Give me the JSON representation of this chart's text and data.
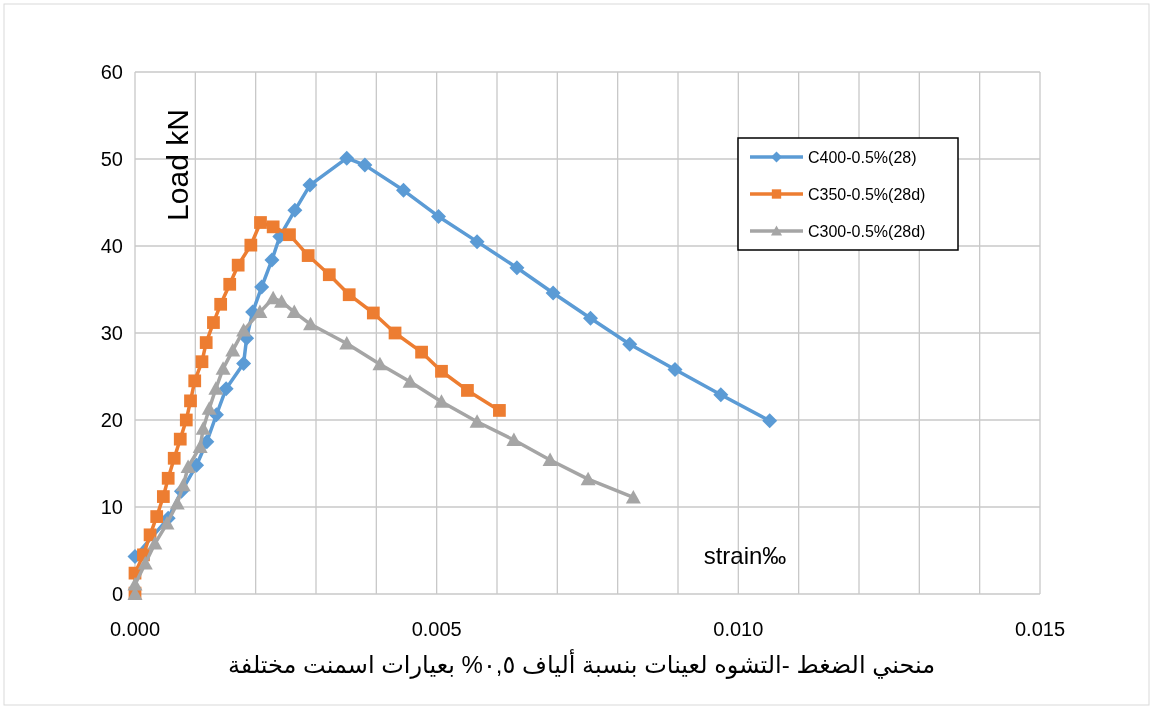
{
  "chart_data": {
    "type": "line",
    "title": "منحني الضغط -التشوه لعينات بنسبة ألياف ٠,٥% بعيارات اسمنت مختلفة",
    "xlabel": "strain‰",
    "ylabel": "Load kN",
    "xlim": [
      0,
      0.015
    ],
    "ylim": [
      0,
      60
    ],
    "xticks": [
      {
        "value": 0,
        "label": "0.000"
      },
      {
        "value": 0.001,
        "label": null
      },
      {
        "value": 0.002,
        "label": null
      },
      {
        "value": 0.003,
        "label": null
      },
      {
        "value": 0.004,
        "label": null
      },
      {
        "value": 0.005,
        "label": "0.005"
      },
      {
        "value": 0.006,
        "label": null
      },
      {
        "value": 0.007,
        "label": null
      },
      {
        "value": 0.008,
        "label": null
      },
      {
        "value": 0.009,
        "label": null
      },
      {
        "value": 0.01,
        "label": "0.010"
      },
      {
        "value": 0.011,
        "label": null
      },
      {
        "value": 0.012,
        "label": null
      },
      {
        "value": 0.013,
        "label": null
      },
      {
        "value": 0.014,
        "label": null
      },
      {
        "value": 0.015,
        "label": "0.015"
      }
    ],
    "yticks": [
      0,
      10,
      20,
      30,
      40,
      50,
      60
    ],
    "grid": true,
    "legend": "top right",
    "line_style": "solid",
    "series": [
      {
        "name": "C400-0.5%(28)",
        "color": "#5b9bd5",
        "marker": "diamond",
        "x": [
          0.0,
          0.00055,
          0.00077,
          0.00102,
          0.00119,
          0.00135,
          0.00151,
          0.0018,
          0.00185,
          0.00195,
          0.0021,
          0.00227,
          0.0024,
          0.00265,
          0.0029,
          0.00351,
          0.00381,
          0.00445,
          0.00503,
          0.00567,
          0.00633,
          0.00693,
          0.00755,
          0.0082,
          0.00895,
          0.00971,
          0.01052
        ],
        "values": [
          4.3,
          8.7,
          11.8,
          14.8,
          17.5,
          20.6,
          23.6,
          26.5,
          29.4,
          32.4,
          35.3,
          38.4,
          41.1,
          44.1,
          47.0,
          50.1,
          49.3,
          46.4,
          43.4,
          40.5,
          37.5,
          34.6,
          31.7,
          28.7,
          25.8,
          22.9,
          19.9
        ]
      },
      {
        "name": "C350-0.5%(28d)",
        "color": "#ed7d31",
        "marker": "square",
        "x": [
          0.0,
          0.0,
          0.00014,
          0.00025,
          0.00036,
          0.00047,
          0.00055,
          0.00065,
          0.00075,
          0.00085,
          0.00092,
          0.00099,
          0.00111,
          0.00118,
          0.0013,
          0.00142,
          0.00157,
          0.00171,
          0.00192,
          0.00208,
          0.00229,
          0.00256,
          0.00287,
          0.00322,
          0.00355,
          0.00395,
          0.00431,
          0.00475,
          0.00508,
          0.00551,
          0.00604
        ],
        "values": [
          0.1,
          2.4,
          4.5,
          6.8,
          8.9,
          11.2,
          13.3,
          15.6,
          17.8,
          20.0,
          22.2,
          24.5,
          26.7,
          28.9,
          31.2,
          33.3,
          35.6,
          37.8,
          40.1,
          42.7,
          42.2,
          41.3,
          38.9,
          36.7,
          34.4,
          32.3,
          30.0,
          27.8,
          25.6,
          23.4,
          21.1
        ]
      },
      {
        "name": "C300-0.5%(28d)",
        "color": "#a5a5a5",
        "marker": "triangle",
        "x": [
          0.0,
          0.0,
          0.00017,
          0.00033,
          0.00053,
          0.0007,
          0.0008,
          0.00088,
          0.00108,
          0.00113,
          0.00123,
          0.00134,
          0.00146,
          0.00162,
          0.0018,
          0.00207,
          0.00229,
          0.00243,
          0.00264,
          0.00291,
          0.00351,
          0.00406,
          0.00456,
          0.00508,
          0.00567,
          0.00628,
          0.00688,
          0.00751,
          0.00826
        ],
        "values": [
          0.0,
          1.1,
          3.5,
          5.8,
          8.1,
          10.4,
          12.5,
          14.6,
          16.9,
          19.0,
          21.3,
          23.6,
          25.9,
          28.0,
          30.3,
          32.4,
          34.0,
          33.6,
          32.4,
          31.0,
          28.8,
          26.4,
          24.4,
          22.1,
          19.8,
          17.7,
          15.4,
          13.2,
          11.1
        ]
      }
    ]
  }
}
